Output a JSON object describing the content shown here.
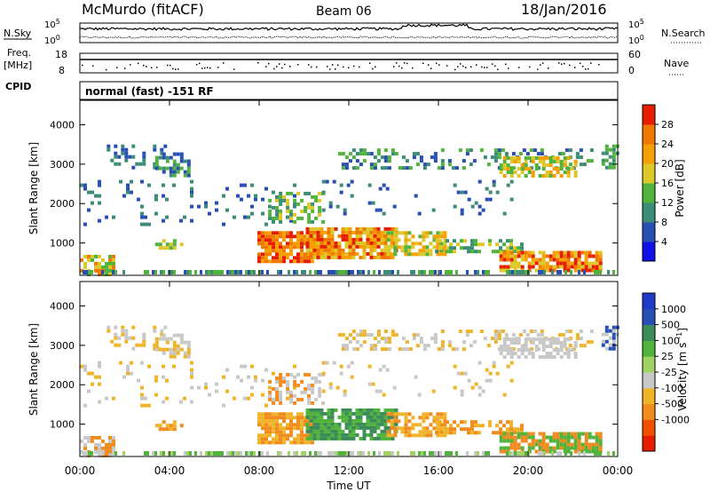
{
  "header": {
    "station": "McMurdo (fitACF)",
    "beam": "Beam 06",
    "date": "18/Jan/2016"
  },
  "left_labels": {
    "nsky": "N.Sky",
    "freq_line1": "Freq.",
    "freq_line2": "[MHz]",
    "cpid": "CPID"
  },
  "right_labels": {
    "nsearch": "N.Search",
    "nave": "Nave"
  },
  "top_ticks": {
    "noise_hi": "10^5",
    "noise_lo": "10^0",
    "freq_hi": "18",
    "freq_lo": "8",
    "nave_hi": "60",
    "nave_lo": "0"
  },
  "cpid_text": "normal (fast) -151 RF",
  "colors": {
    "power_scale": [
      "#1010e6",
      "#2850b4",
      "#3c8c78",
      "#50b43c",
      "#dcc828",
      "#f5a000",
      "#f07800",
      "#e61e00"
    ],
    "velocity_scale": [
      "#e61e00",
      "#f05000",
      "#f08c1e",
      "#f0b428",
      "#c8c8c8",
      "#a0d264",
      "#50b43c",
      "#3c8c5a",
      "#2850b4",
      "#1e3cc8"
    ]
  },
  "chart_data": [
    {
      "type": "heatmap",
      "title": "",
      "ylabel": "Slant Range [km]",
      "xlabel": "",
      "x_range": [
        "00:00",
        "00:00"
      ],
      "ylim": [
        180,
        4620
      ],
      "yticks": [
        "4000",
        "3000",
        "2000",
        "1000"
      ],
      "colorbar": {
        "label": "Power [dB]",
        "ticks": [
          "28",
          "24",
          "20",
          "16",
          "12",
          "8",
          "4"
        ],
        "range": [
          0,
          32
        ]
      }
    },
    {
      "type": "heatmap",
      "title": "",
      "ylabel": "Slant Range [km]",
      "xlabel": "Time UT",
      "xticks": [
        "00:00",
        "04:00",
        "08:00",
        "12:00",
        "16:00",
        "20:00",
        "00:00"
      ],
      "ylim": [
        180,
        4620
      ],
      "yticks": [
        "4000",
        "3000",
        "2000",
        "1000"
      ],
      "colorbar": {
        "label": "Velocity [m s^-1]",
        "ticks": [
          "1000",
          "500",
          "100",
          "25",
          "-25",
          "-100",
          "-500",
          "-1000"
        ]
      }
    }
  ]
}
